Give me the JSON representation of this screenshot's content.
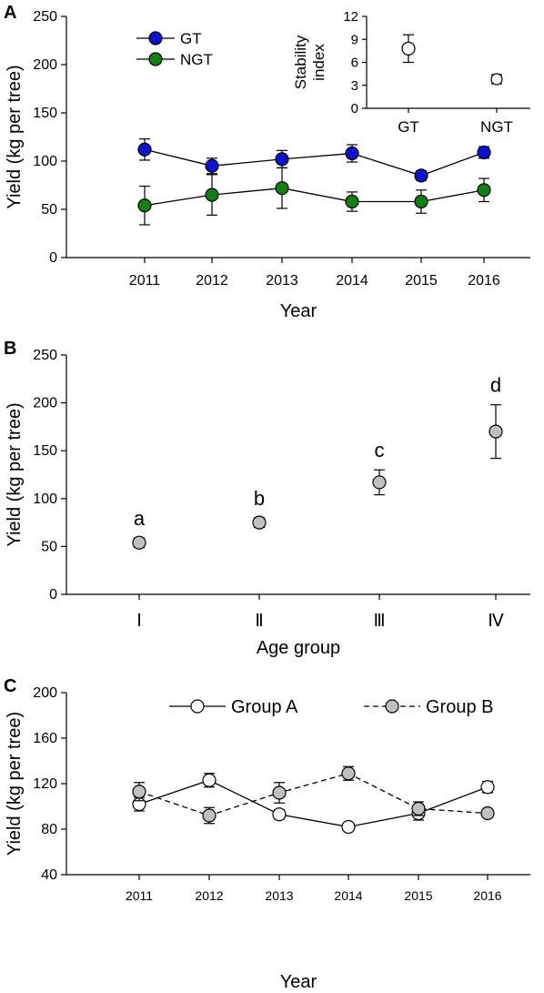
{
  "chart_data": [
    {
      "panel_label": "A",
      "type": "line",
      "ylabel": "Yield (kg per tree)",
      "xlabel": "Year",
      "ylim": [
        0,
        250
      ],
      "yticks": [
        0,
        50,
        100,
        150,
        200,
        250
      ],
      "categories": [
        "2011",
        "2012",
        "2013",
        "2014",
        "2015",
        "2016"
      ],
      "legend_position": "top-left",
      "series": [
        {
          "name": "GT",
          "color": "#1010d0",
          "values": [
            112,
            95,
            102,
            108,
            85,
            109
          ],
          "errors": [
            11,
            8,
            9,
            9,
            5,
            6
          ]
        },
        {
          "name": "NGT",
          "color": "#108010",
          "values": [
            54,
            65,
            72,
            58,
            58,
            70
          ],
          "errors": [
            20,
            21,
            21,
            10,
            12,
            12
          ]
        }
      ],
      "inset": {
        "type": "scatter",
        "ylabel": "Stability index",
        "ylim": [
          0,
          12
        ],
        "yticks": [
          0,
          3,
          6,
          9,
          12
        ],
        "categories": [
          "GT",
          "NGT"
        ],
        "values": [
          7.8,
          3.8
        ],
        "errors": [
          1.8,
          0.6
        ]
      }
    },
    {
      "panel_label": "B",
      "type": "scatter",
      "ylabel": "Yield (kg per tree)",
      "xlabel": "Age group",
      "ylim": [
        0,
        250
      ],
      "yticks": [
        0,
        50,
        100,
        150,
        200,
        250
      ],
      "categories": [
        "I",
        "II",
        "III",
        "IV"
      ],
      "values": [
        54,
        75,
        117,
        170
      ],
      "errors": [
        5,
        5,
        13,
        28
      ],
      "annotations": [
        "a",
        "b",
        "c",
        "d"
      ]
    },
    {
      "panel_label": "C",
      "type": "line",
      "ylabel": "Yield (kg per tree)",
      "xlabel": "Year",
      "ylim": [
        40,
        200
      ],
      "yticks": [
        40,
        80,
        120,
        160,
        200
      ],
      "categories": [
        "2011",
        "2012",
        "2013",
        "2014",
        "2015",
        "2016"
      ],
      "legend_position": "top",
      "series": [
        {
          "name": "Group A",
          "style": "solid",
          "marker_fill": "#ffffff",
          "values": [
            102,
            123,
            93,
            82,
            94,
            117
          ],
          "errors": [
            6,
            6,
            4,
            2,
            6,
            5
          ]
        },
        {
          "name": "Group B",
          "style": "dashed",
          "marker_fill": "#c0c0c0",
          "values": [
            113,
            92,
            112,
            129,
            98,
            94
          ],
          "errors": [
            8,
            7,
            9,
            6,
            6,
            3
          ]
        }
      ]
    }
  ]
}
